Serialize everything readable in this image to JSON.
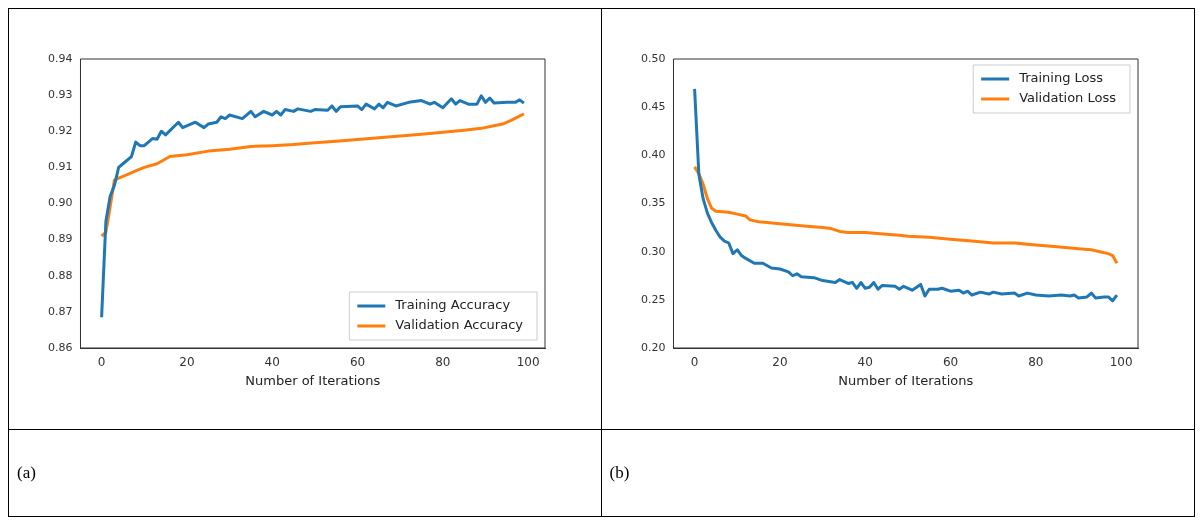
{
  "chart_data": [
    {
      "type": "line",
      "xlabel": "Number of Iterations",
      "xlim": [
        -4.95,
        103.95
      ],
      "xticks": [
        0,
        20,
        40,
        60,
        80,
        100
      ],
      "ylim": [
        0.86,
        0.94
      ],
      "yticks": [
        {
          "value": 0.86,
          "label": "0.86"
        },
        {
          "value": 0.87,
          "label": "0.87"
        },
        {
          "value": 0.88,
          "label": "0.88"
        },
        {
          "value": 0.89,
          "label": "0.89"
        },
        {
          "value": 0.9,
          "label": "0.90"
        },
        {
          "value": 0.91,
          "label": "0.91"
        },
        {
          "value": 0.92,
          "label": "0.92"
        },
        {
          "value": 0.93,
          "label": "0.93"
        },
        {
          "value": 0.94,
          "label": "0.94"
        }
      ],
      "legend": "bottom right",
      "grid": false,
      "annotations": [
        "(a)"
      ],
      "series": [
        {
          "name": "Training Accuracy",
          "color": "#1f77b4",
          "x": [
            0,
            1,
            2,
            3,
            4,
            5,
            7,
            8,
            9,
            10,
            12,
            13,
            14,
            15,
            18,
            19,
            22,
            24,
            25,
            27,
            28,
            29,
            30,
            33,
            35,
            36,
            38,
            40,
            41,
            42,
            43,
            45,
            46,
            49,
            50,
            53,
            54,
            55,
            56,
            60,
            61,
            62,
            64,
            65,
            66,
            67,
            69,
            72,
            75,
            77,
            78,
            80,
            82,
            83,
            84,
            86,
            88,
            89,
            90,
            91,
            92,
            95,
            97,
            98,
            99
          ],
          "values": [
            0.8685,
            0.895,
            0.902,
            0.905,
            0.91,
            0.911,
            0.913,
            0.917,
            0.916,
            0.916,
            0.918,
            0.9178,
            0.92,
            0.919,
            0.9225,
            0.921,
            0.9225,
            0.921,
            0.922,
            0.9225,
            0.924,
            0.9235,
            0.9245,
            0.9235,
            0.9255,
            0.924,
            0.9255,
            0.9245,
            0.9255,
            0.9245,
            0.926,
            0.9255,
            0.9262,
            0.9255,
            0.926,
            0.9258,
            0.927,
            0.9255,
            0.9268,
            0.927,
            0.926,
            0.9275,
            0.9262,
            0.9275,
            0.9265,
            0.928,
            0.927,
            0.928,
            0.9285,
            0.9275,
            0.928,
            0.9265,
            0.929,
            0.9275,
            0.9285,
            0.9275,
            0.9275,
            0.9298,
            0.928,
            0.9292,
            0.9278,
            0.928,
            0.928,
            0.9287,
            0.9278
          ]
        },
        {
          "name": "Validation Accuracy",
          "color": "#ff7f0e",
          "x": [
            0,
            1,
            2,
            3,
            4,
            6,
            8,
            10,
            13,
            16,
            20,
            25,
            30,
            35,
            40,
            45,
            50,
            55,
            60,
            65,
            70,
            75,
            80,
            85,
            89,
            92,
            94,
            96,
            99
          ],
          "values": [
            0.891,
            0.892,
            0.899,
            0.9065,
            0.907,
            0.908,
            0.909,
            0.91,
            0.911,
            0.913,
            0.9135,
            0.9145,
            0.915,
            0.9158,
            0.916,
            0.9163,
            0.9168,
            0.9172,
            0.9177,
            0.9182,
            0.9187,
            0.9192,
            0.9197,
            0.9203,
            0.9208,
            0.9215,
            0.922,
            0.923,
            0.9248
          ]
        }
      ]
    },
    {
      "type": "line",
      "xlabel": "Number of Iterations",
      "xlim": [
        -4.95,
        103.95
      ],
      "xticks": [
        0,
        20,
        40,
        60,
        80,
        100
      ],
      "ylim": [
        0.2,
        0.5
      ],
      "yticks": [
        {
          "value": 0.2,
          "label": "0.20"
        },
        0.25,
        {
          "value": 0.3,
          "label": "0.30"
        },
        0.35,
        {
          "value": 0.4,
          "label": "0.40"
        },
        0.45,
        {
          "value": 0.5,
          "label": "0.50"
        }
      ],
      "legend": "top right",
      "grid": false,
      "annotations": [
        "(b)"
      ],
      "series": [
        {
          "name": "Training Loss",
          "color": "#1f77b4",
          "x": [
            0,
            1,
            2,
            3,
            4,
            5,
            6,
            7,
            8,
            9,
            10,
            11,
            12,
            14,
            16,
            18,
            20,
            22,
            23,
            24,
            25,
            28,
            30,
            33,
            34,
            36,
            37,
            38,
            39,
            40,
            41,
            42,
            43,
            44,
            47,
            48,
            49,
            51,
            53,
            54,
            55,
            57,
            58,
            60,
            62,
            63,
            64,
            65,
            67,
            69,
            70,
            72,
            75,
            76,
            78,
            80,
            83,
            86,
            88,
            89,
            90,
            92,
            93,
            94,
            96,
            97,
            98,
            99
          ],
          "values": [
            0.469,
            0.38,
            0.355,
            0.34,
            0.33,
            0.322,
            0.315,
            0.311,
            0.309,
            0.298,
            0.302,
            0.296,
            0.293,
            0.288,
            0.288,
            0.283,
            0.282,
            0.279,
            0.275,
            0.277,
            0.274,
            0.273,
            0.27,
            0.268,
            0.271,
            0.267,
            0.268,
            0.262,
            0.268,
            0.262,
            0.263,
            0.268,
            0.261,
            0.265,
            0.264,
            0.261,
            0.264,
            0.26,
            0.266,
            0.254,
            0.261,
            0.261,
            0.262,
            0.259,
            0.26,
            0.257,
            0.259,
            0.255,
            0.258,
            0.256,
            0.258,
            0.256,
            0.257,
            0.254,
            0.257,
            0.255,
            0.254,
            0.255,
            0.254,
            0.255,
            0.252,
            0.253,
            0.257,
            0.252,
            0.253,
            0.253,
            0.249,
            0.255
          ]
        },
        {
          "name": "Validation Loss",
          "color": "#ff7f0e",
          "x": [
            0,
            1,
            2,
            3,
            4,
            5,
            8,
            10,
            12,
            13,
            15,
            20,
            25,
            30,
            32,
            34,
            36,
            40,
            45,
            48,
            50,
            55,
            60,
            65,
            70,
            75,
            80,
            85,
            90,
            93,
            95,
            97,
            98,
            99
          ],
          "values": [
            0.388,
            0.381,
            0.37,
            0.355,
            0.345,
            0.342,
            0.341,
            0.339,
            0.337,
            0.333,
            0.331,
            0.329,
            0.327,
            0.325,
            0.324,
            0.321,
            0.32,
            0.32,
            0.318,
            0.317,
            0.316,
            0.315,
            0.313,
            0.311,
            0.309,
            0.309,
            0.307,
            0.305,
            0.303,
            0.302,
            0.3,
            0.298,
            0.296,
            0.288
          ]
        }
      ]
    }
  ]
}
